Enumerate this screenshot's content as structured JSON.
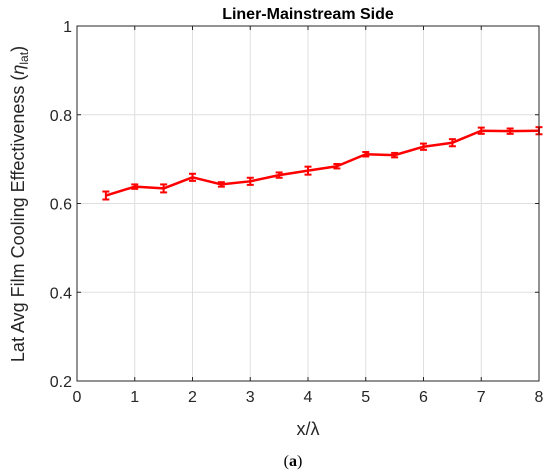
{
  "chart_data": {
    "type": "line",
    "title": "Liner-Mainstream Side",
    "xlabel": "x/λ",
    "ylabel_main": "Lat Avg Film Cooling Effectiveness (",
    "ylabel_symbol": "η",
    "ylabel_subscript": "lat",
    "ylabel_close": ")",
    "xlim": [
      0,
      8
    ],
    "ylim": [
      0.2,
      1
    ],
    "xticks": [
      "0",
      "1",
      "2",
      "3",
      "4",
      "5",
      "6",
      "7",
      "8"
    ],
    "yticks": [
      "0.2",
      "0.4",
      "0.6",
      "0.8",
      "1"
    ],
    "grid": true,
    "series": [
      {
        "color": "#ff0000",
        "x": [
          0.5,
          1,
          1.5,
          2,
          2.5,
          3,
          3.5,
          4,
          4.5,
          5,
          5.5,
          6,
          6.5,
          7,
          7.5,
          8
        ],
        "y": [
          0.618,
          0.638,
          0.634,
          0.659,
          0.643,
          0.65,
          0.664,
          0.674,
          0.684,
          0.711,
          0.709,
          0.728,
          0.737,
          0.764,
          0.763,
          0.764
        ],
        "error": [
          0.009,
          0.005,
          0.009,
          0.008,
          0.005,
          0.008,
          0.006,
          0.009,
          0.005,
          0.005,
          0.005,
          0.007,
          0.008,
          0.007,
          0.006,
          0.008
        ]
      }
    ]
  },
  "caption": {
    "open": "(",
    "label": "a",
    "close": ")"
  }
}
